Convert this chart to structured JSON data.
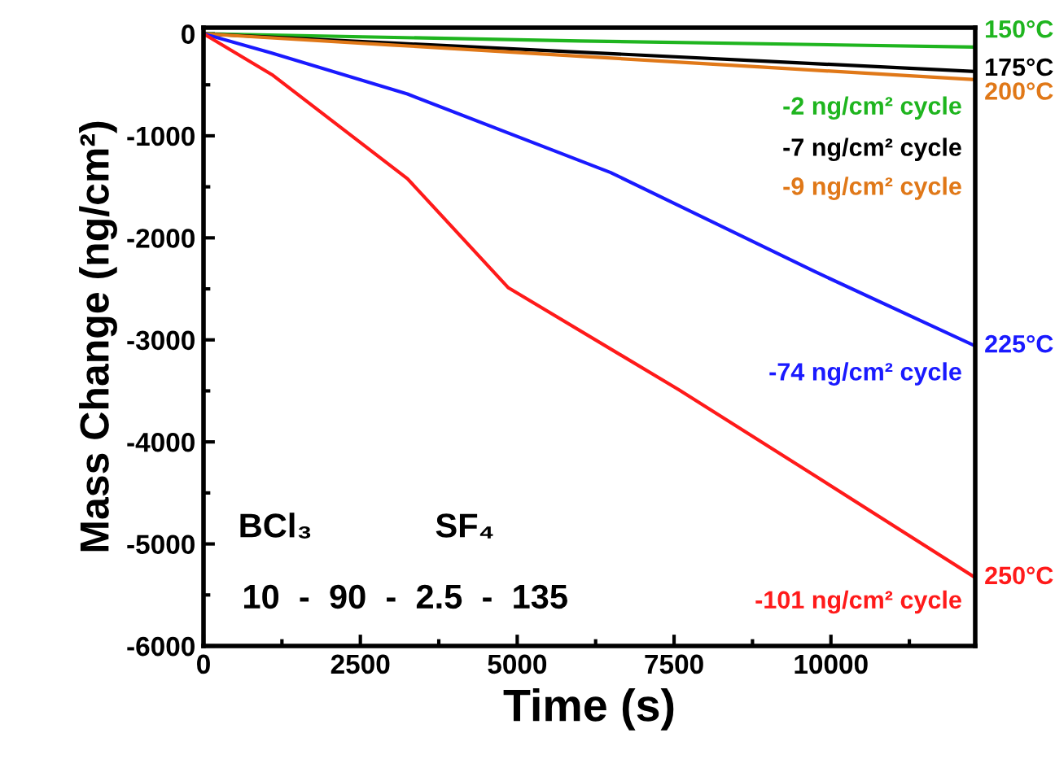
{
  "chart_data": {
    "type": "line",
    "xlabel": "Time (s)",
    "ylabel": "Mass Change (ng/cm²)",
    "xlim": [
      0,
      12300
    ],
    "xticks": [
      0,
      2500,
      5000,
      7500,
      10000
    ],
    "ylim": [
      -6000,
      60
    ],
    "yticks": [
      -6000,
      -5000,
      -4000,
      -3000,
      -2000,
      -1000,
      0
    ],
    "grid": false,
    "legend": false,
    "series": [
      {
        "name": "150°C",
        "color": "#1fb51f",
        "x": [
          0,
          6000,
          12300
        ],
        "values": [
          0,
          -70,
          -130
        ]
      },
      {
        "name": "175°C",
        "color": "#000000",
        "x": [
          0,
          3000,
          6000,
          9000,
          12300
        ],
        "values": [
          0,
          -90,
          -180,
          -270,
          -370
        ]
      },
      {
        "name": "200°C",
        "color": "#e07818",
        "x": [
          0,
          3000,
          6000,
          9000,
          12300
        ],
        "values": [
          0,
          -110,
          -220,
          -330,
          -450
        ]
      },
      {
        "name": "225°C",
        "color": "#1a1aff",
        "x": [
          0,
          1090,
          3250,
          6490,
          9740,
          12300
        ],
        "values": [
          0,
          -190,
          -590,
          -1360,
          -2330,
          -3060
        ]
      },
      {
        "name": "250°C",
        "color": "#ff1a1a",
        "x": [
          0,
          1090,
          3250,
          4860,
          7580,
          9740,
          12300
        ],
        "values": [
          0,
          -400,
          -1420,
          -2490,
          -3490,
          -4330,
          -5330
        ]
      }
    ],
    "annotations": [
      "-2 ng/cm² cycle",
      "-7 ng/cm² cycle",
      "-9 ng/cm² cycle",
      "-74 ng/cm² cycle",
      "-101 ng/cm² cycle",
      "BCl₃",
      "SF₄",
      "10  -  90  -  2.5  -  135"
    ]
  }
}
